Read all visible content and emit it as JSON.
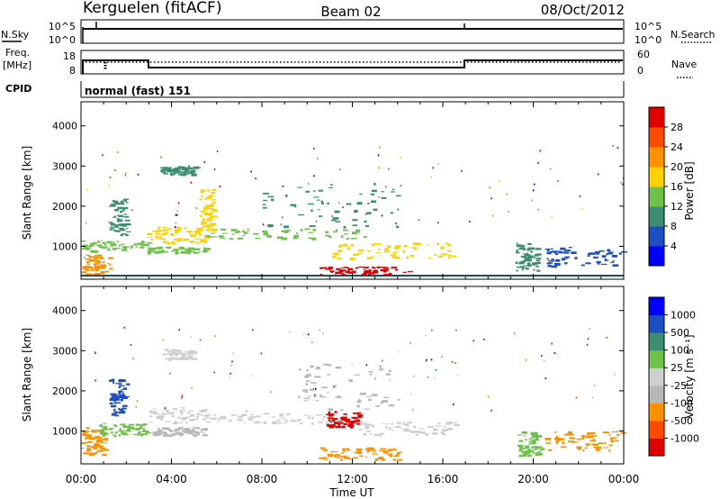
{
  "header": {
    "station": "Kerguelen (fitACF)",
    "beam": "Beam 02",
    "date": "08/Oct/2012"
  },
  "status_panels": {
    "nsky_label": "N.Sky",
    "nsky_ticks": [
      "10^5",
      "10^0"
    ],
    "nsearch_label": "N.Search",
    "nsearch_ticks": [
      "10^5",
      "10^0"
    ],
    "freq_label": "Freq.",
    "freq_unit": "[MHz]",
    "freq_ticks": [
      "18",
      "8"
    ],
    "nave_label": "Nave",
    "nave_ticks": [
      "60",
      "0"
    ],
    "cpid_label": "CPID",
    "cpid_value": "normal (fast) 151"
  },
  "time_axis": {
    "label": "Time UT",
    "ticks": [
      "00:00",
      "04:00",
      "08:00",
      "12:00",
      "16:00",
      "20:00",
      "00:00"
    ],
    "range_hours": [
      0,
      24
    ]
  },
  "chart_data": [
    {
      "type": "heatmap",
      "name": "power",
      "ylabel": "Slant Range [km]",
      "yticks": [
        1000,
        2000,
        3000,
        4000
      ],
      "ylim": [
        180,
        4600
      ],
      "xlim": [
        0,
        24
      ],
      "colorbar": {
        "label": "Power [dB]",
        "ticks": [
          "28",
          "24",
          "20",
          "16",
          "12",
          "8",
          "4"
        ],
        "colors": [
          "#0000ff",
          "#1e4fc2",
          "#3c8e72",
          "#6dc24a",
          "#ffd000",
          "#ff9000",
          "#ff4a00",
          "#e00000"
        ]
      },
      "bands": [
        {
          "t0": 0.0,
          "t1": 1.3,
          "r0": 300,
          "r1": 800,
          "level": 5
        },
        {
          "t0": 0.0,
          "t1": 3.0,
          "r0": 900,
          "r1": 1150,
          "level": 3
        },
        {
          "t0": 1.2,
          "t1": 2.0,
          "r0": 1300,
          "r1": 2200,
          "level": 2
        },
        {
          "t0": 2.9,
          "t1": 5.5,
          "r0": 1100,
          "r1": 1500,
          "level": 4
        },
        {
          "t0": 2.9,
          "t1": 5.5,
          "r0": 850,
          "r1": 1000,
          "level": 3
        },
        {
          "t0": 5.2,
          "t1": 5.8,
          "r0": 1400,
          "r1": 2500,
          "level": 4
        },
        {
          "t0": 5.5,
          "t1": 12.5,
          "r0": 1200,
          "r1": 1450,
          "level": 3
        },
        {
          "t0": 8.0,
          "t1": 14.0,
          "r0": 1500,
          "r1": 2600,
          "level": 2
        },
        {
          "t0": 10.5,
          "t1": 14.5,
          "r0": 300,
          "r1": 500,
          "level": 7
        },
        {
          "t0": 11.0,
          "t1": 16.5,
          "r0": 700,
          "r1": 1100,
          "level": 4
        },
        {
          "t0": 3.5,
          "t1": 5.0,
          "r0": 2800,
          "r1": 3000,
          "level": 2
        },
        {
          "t0": 19.2,
          "t1": 20.2,
          "r0": 400,
          "r1": 1100,
          "level": 2
        },
        {
          "t0": 20.5,
          "t1": 24.0,
          "r0": 500,
          "r1": 1000,
          "level": 1
        }
      ]
    },
    {
      "type": "heatmap",
      "name": "velocity",
      "ylabel": "Slant Range [km]",
      "yticks": [
        1000,
        2000,
        3000,
        4000
      ],
      "ylim": [
        180,
        4600
      ],
      "xlim": [
        0,
        24
      ],
      "colorbar": {
        "label": "Velocity [m s⁻¹]",
        "ticks": [
          "1000",
          "500",
          "100",
          "25",
          "-25",
          "-100",
          "-500",
          "-1000"
        ],
        "colors": [
          "#e00000",
          "#ff4a00",
          "#ff9000",
          "#b8b8b8",
          "#cfcfcf",
          "#6dc24a",
          "#3c8e72",
          "#1e4fc2",
          "#0000ff"
        ]
      },
      "bands": [
        {
          "t0": 0.0,
          "t1": 1.0,
          "r0": 400,
          "r1": 1100,
          "level": 2
        },
        {
          "t0": 0.8,
          "t1": 3.0,
          "r0": 900,
          "r1": 1200,
          "level": 5
        },
        {
          "t0": 1.2,
          "t1": 2.0,
          "r0": 1400,
          "r1": 2300,
          "level": 7
        },
        {
          "t0": 3.0,
          "t1": 5.5,
          "r0": 1200,
          "r1": 1600,
          "level": 4
        },
        {
          "t0": 3.0,
          "t1": 5.5,
          "r0": 900,
          "r1": 1100,
          "level": 3
        },
        {
          "t0": 5.5,
          "t1": 11.0,
          "r0": 1200,
          "r1": 1450,
          "level": 4
        },
        {
          "t0": 9.5,
          "t1": 14.0,
          "r0": 1500,
          "r1": 2700,
          "level": 3
        },
        {
          "t0": 10.8,
          "t1": 12.3,
          "r0": 1100,
          "r1": 1500,
          "level": 0
        },
        {
          "t0": 10.5,
          "t1": 14.0,
          "r0": 300,
          "r1": 600,
          "level": 2
        },
        {
          "t0": 12.0,
          "t1": 16.5,
          "r0": 900,
          "r1": 1250,
          "level": 4
        },
        {
          "t0": 3.5,
          "t1": 5.0,
          "r0": 2800,
          "r1": 3050,
          "level": 4
        },
        {
          "t0": 19.3,
          "t1": 20.3,
          "r0": 400,
          "r1": 1000,
          "level": 5
        },
        {
          "t0": 20.5,
          "t1": 24.0,
          "r0": 500,
          "r1": 1000,
          "level": 2
        }
      ]
    }
  ]
}
